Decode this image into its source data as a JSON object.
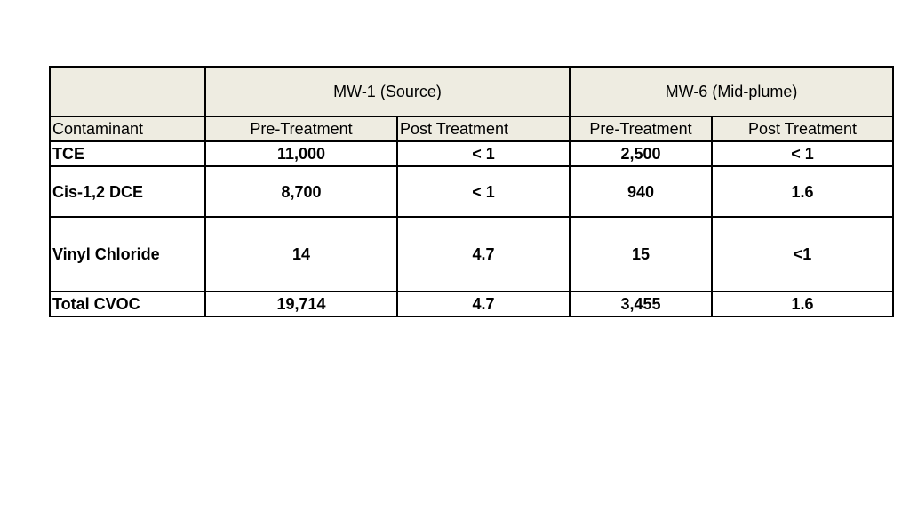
{
  "table": {
    "group_headers": [
      "MW-1 (Source)",
      "MW-6 (Mid-plume)"
    ],
    "column_headers": [
      "Contaminant",
      "Pre-Treatment",
      "Post Treatment",
      "Pre-Treatment",
      "Post Treatment"
    ],
    "rows": [
      {
        "contaminant": "TCE",
        "values": [
          "11,000",
          "< 1",
          "2,500",
          "< 1"
        ]
      },
      {
        "contaminant": "Cis-1,2 DCE",
        "values": [
          "8,700",
          "< 1",
          "940",
          "1.6"
        ]
      },
      {
        "contaminant": "Vinyl Chloride",
        "values": [
          "14",
          "4.7",
          "15",
          "<1"
        ]
      },
      {
        "contaminant": "Total CVOC",
        "values": [
          "19,714",
          "4.7",
          "3,455",
          "1.6"
        ]
      }
    ]
  },
  "colors": {
    "header_fill": "#eeece1",
    "border": "#000000",
    "background": "#ffffff"
  }
}
